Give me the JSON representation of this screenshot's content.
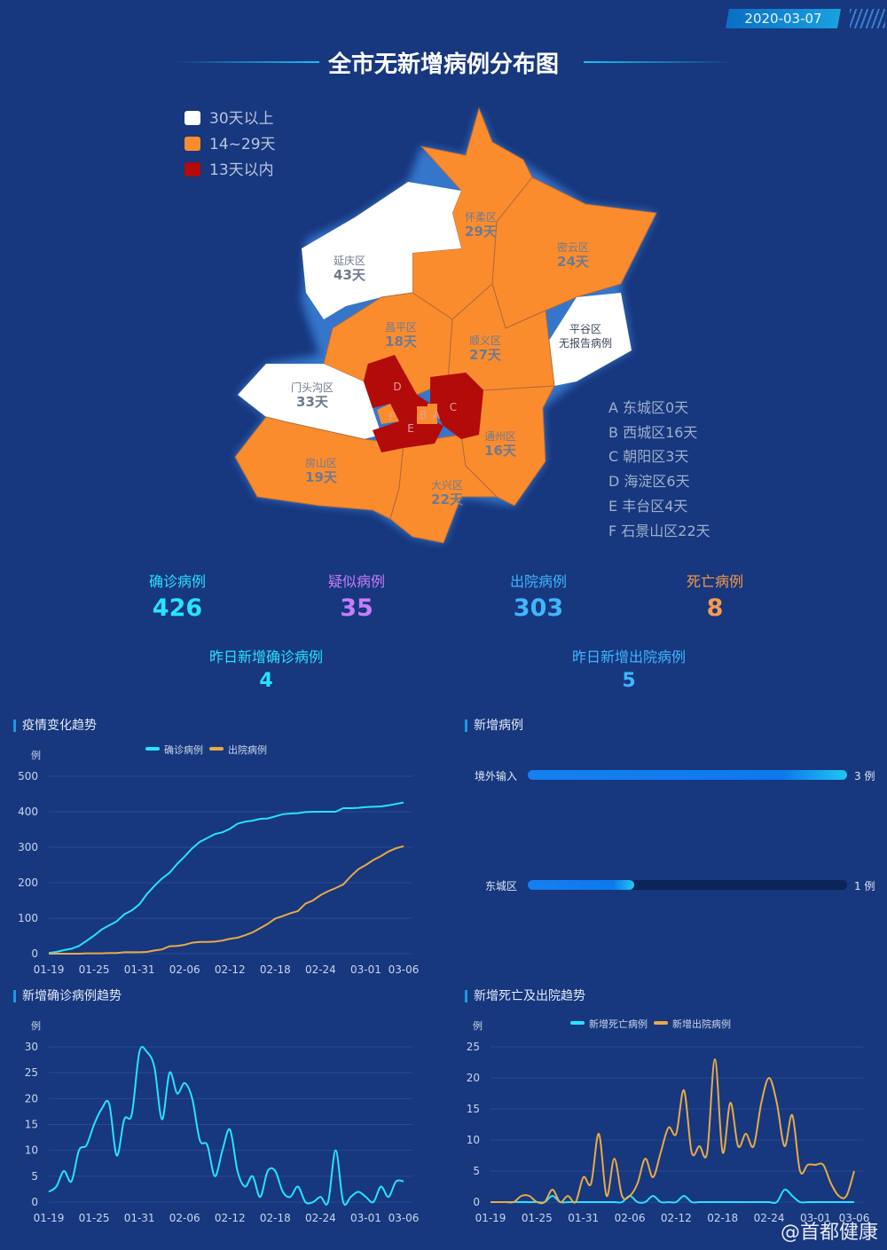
{
  "header": {
    "date": "2020-03-07",
    "title": "全市无新增病例分布图"
  },
  "legend": [
    {
      "label": "30天以上",
      "color": "#ffffff"
    },
    {
      "label": "14~29天",
      "color": "#fb8c2e"
    },
    {
      "label": "13天以内",
      "color": "#b30a0a"
    }
  ],
  "districts": {
    "huairou": {
      "name": "怀柔区",
      "days": "29天"
    },
    "miyun": {
      "name": "密云区",
      "days": "24天"
    },
    "yanqing": {
      "name": "延庆区",
      "days": "43天"
    },
    "changping": {
      "name": "昌平区",
      "days": "18天"
    },
    "shunyi": {
      "name": "顺义区",
      "days": "27天"
    },
    "pinggu": {
      "name": "平谷区",
      "days": "无报告病例"
    },
    "mentougou": {
      "name": "门头沟区",
      "days": "33天"
    },
    "fangshan": {
      "name": "房山区",
      "days": "19天"
    },
    "daxing": {
      "name": "大兴区",
      "days": "22天"
    },
    "tongzhou": {
      "name": "通州区",
      "days": "16天"
    },
    "letters": [
      "A",
      "B",
      "C",
      "D",
      "E",
      "F"
    ]
  },
  "key": [
    "A 东城区0天",
    "B 西城区16天",
    "C 朝阳区3天",
    "D 海淀区6天",
    "E 丰台区4天",
    "F 石景山区22天"
  ],
  "stats": [
    {
      "label": "确诊病例",
      "value": "426",
      "color": "#27e3ff"
    },
    {
      "label": "疑似病例",
      "value": "35",
      "color": "#c77dfb"
    },
    {
      "label": "出院病例",
      "value": "303",
      "color": "#3fb6ff"
    },
    {
      "label": "死亡病例",
      "value": "8",
      "color": "#f79b4e"
    }
  ],
  "stats2": [
    {
      "label": "昨日新增确诊病例",
      "value": "4",
      "color": "#27e3ff"
    },
    {
      "label": "昨日新增出院病例",
      "value": "5",
      "color": "#3fb6ff"
    }
  ],
  "new_cases": {
    "title": "新增病例",
    "items": [
      {
        "label": "境外输入",
        "value": 3,
        "text": "3 例"
      },
      {
        "label": "东城区",
        "value": 1,
        "text": "1 例"
      }
    ],
    "max": 3
  },
  "watermark": "@首都健康",
  "chart_data": [
    {
      "type": "line",
      "title": "疫情变化趋势",
      "ylabel": "例",
      "ylim": [
        0,
        500
      ],
      "yticks": [
        "0",
        "100",
        "200",
        "300",
        "400",
        "500"
      ],
      "xticks": [
        "01-19",
        "01-25",
        "01-31",
        "02-06",
        "02-12",
        "02-18",
        "02-24",
        "03-01",
        "03-06"
      ],
      "series": [
        {
          "name": "确诊病例",
          "color": "#27e3ff",
          "values": [
            2,
            5,
            10,
            14,
            22,
            36,
            51,
            68,
            80,
            91,
            111,
            122,
            139,
            168,
            191,
            212,
            228,
            253,
            274,
            297,
            315,
            326,
            337,
            342,
            352,
            366,
            372,
            375,
            380,
            381,
            387,
            393,
            395,
            396,
            399,
            400,
            400,
            400,
            400,
            410,
            410,
            411,
            413,
            414,
            415,
            418,
            422,
            426
          ]
        },
        {
          "name": "出院病例",
          "color": "#e9aa45",
          "values": [
            0,
            0,
            0,
            0,
            0,
            1,
            1,
            1,
            2,
            2,
            4,
            4,
            4,
            5,
            9,
            12,
            21,
            22,
            25,
            31,
            33,
            33,
            34,
            37,
            42,
            45,
            52,
            60,
            72,
            84,
            99,
            106,
            114,
            120,
            141,
            150,
            165,
            176,
            185,
            195,
            218,
            238,
            250,
            264,
            275,
            288,
            297,
            303
          ]
        }
      ]
    },
    {
      "type": "line",
      "title": "新增确诊病例趋势",
      "ylabel": "例",
      "ylim": [
        0,
        30
      ],
      "yticks": [
        "0",
        "5",
        "10",
        "15",
        "20",
        "25",
        "30"
      ],
      "xticks": [
        "01-19",
        "01-25",
        "01-31",
        "02-06",
        "02-12",
        "02-18",
        "02-24",
        "03-01",
        "03-06"
      ],
      "series": [
        {
          "name": "新增确诊病例",
          "color": "#27e3ff",
          "values": [
            2,
            3,
            6,
            4,
            10,
            11,
            15,
            18,
            19,
            9,
            16,
            17,
            29,
            29,
            26,
            16,
            25,
            21,
            23,
            20,
            12,
            11,
            5,
            10,
            14,
            6,
            3,
            5,
            1,
            6,
            6,
            2,
            1,
            3,
            0,
            0,
            1,
            0,
            10,
            0,
            1,
            2,
            1,
            0,
            3,
            1,
            4,
            4
          ]
        }
      ]
    },
    {
      "type": "line",
      "title": "新增死亡及出院趋势",
      "ylabel": "例",
      "ylim": [
        0,
        25
      ],
      "yticks": [
        "0",
        "5",
        "10",
        "15",
        "20",
        "25"
      ],
      "xticks": [
        "01-19",
        "01-25",
        "01-31",
        "02-06",
        "02-12",
        "02-18",
        "02-24",
        "03-01",
        "03-06"
      ],
      "series": [
        {
          "name": "新增死亡病例",
          "color": "#27e3ff",
          "values": [
            0,
            0,
            0,
            0,
            0,
            0,
            0,
            0,
            1,
            0,
            0,
            0,
            0,
            0,
            0,
            0,
            0,
            0,
            1,
            0,
            0,
            1,
            0,
            0,
            0,
            1,
            0,
            0,
            0,
            0,
            0,
            0,
            0,
            0,
            0,
            0,
            0,
            0,
            2,
            1,
            0,
            0,
            0,
            0,
            0,
            0,
            0,
            0
          ]
        },
        {
          "name": "新增出院病例",
          "color": "#e9aa45",
          "values": [
            0,
            0,
            0,
            0,
            1,
            1,
            0,
            0,
            2,
            0,
            1,
            0,
            4,
            3,
            11,
            1,
            7,
            1,
            1,
            3,
            7,
            4,
            8,
            12,
            11,
            18,
            8,
            9,
            8,
            23,
            8,
            16,
            9,
            11,
            9,
            16,
            20,
            16,
            9,
            14,
            5,
            6,
            6,
            6,
            3,
            1,
            1,
            5
          ]
        }
      ]
    }
  ]
}
